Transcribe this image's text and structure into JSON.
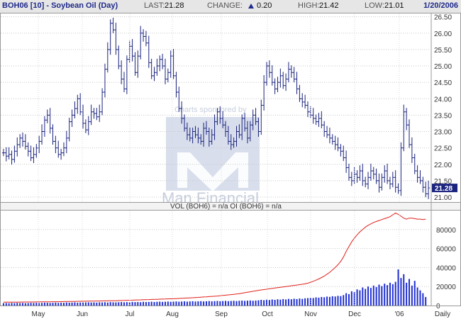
{
  "header": {
    "title": "BOH06 [10] - Soybean Oil (Day)",
    "last_label": "LAST:",
    "last_value": "21.28",
    "change_label": "CHANGE:",
    "change_value": "0.20",
    "high_label": "HIGH:",
    "high_value": "21.42",
    "low_label": "LOW:",
    "low_value": "21.01",
    "date": "1/20/2006"
  },
  "watermark": {
    "sponsor_text": "Charts sponsored by",
    "brand": "Man Financial"
  },
  "colors": {
    "price_bars": "#1a237e",
    "volume_bars": "#1f2fd0",
    "open_interest": "#e0201a",
    "last_tag_bg": "#1a237e"
  },
  "chart_data": [
    {
      "type": "ohlc",
      "title": "BOH06 [10] - Soybean Oil (Day)",
      "period": "Daily",
      "x_labels": [
        "May",
        "Jun",
        "Jul",
        "Aug",
        "Sep",
        "Oct",
        "Nov",
        "Dec",
        "'06",
        "Daily"
      ],
      "y_ticks": [
        "21.00",
        "21.50",
        "22.00",
        "22.50",
        "23.00",
        "23.50",
        "24.00",
        "24.50",
        "25.00",
        "25.50",
        "26.00",
        "26.50"
      ],
      "ylim": [
        20.85,
        26.6
      ],
      "last_tag": "21.28",
      "grid": true,
      "series_close": [
        22.35,
        22.25,
        22.3,
        22.15,
        22.4,
        22.6,
        22.8,
        22.7,
        22.55,
        22.4,
        22.2,
        22.3,
        22.5,
        22.7,
        23.0,
        23.35,
        23.5,
        23.1,
        22.7,
        22.5,
        22.3,
        22.35,
        22.5,
        22.8,
        23.3,
        23.5,
        23.7,
        24.0,
        23.6,
        23.25,
        23.05,
        23.3,
        23.6,
        23.55,
        23.45,
        23.6,
        24.2,
        24.9,
        25.5,
        26.3,
        26.1,
        25.5,
        25.0,
        24.6,
        24.3,
        25.2,
        25.6,
        25.3,
        24.8,
        25.3,
        26.0,
        25.9,
        25.7,
        25.1,
        24.7,
        24.8,
        25.0,
        25.2,
        25.0,
        24.6,
        24.8,
        25.3,
        24.7,
        24.2,
        23.7,
        23.4,
        23.1,
        22.9,
        22.8,
        23.0,
        22.9,
        22.8,
        22.7,
        23.1,
        23.0,
        22.7,
        22.9,
        23.3,
        23.6,
        23.4,
        23.2,
        23.0,
        22.7,
        22.6,
        22.7,
        23.0,
        22.9,
        23.4,
        23.1,
        22.8,
        23.2,
        23.5,
        23.3,
        23.0,
        23.8,
        24.5,
        25.0,
        24.8,
        24.5,
        24.3,
        24.5,
        24.7,
        24.4,
        24.6,
        24.9,
        24.8,
        24.6,
        24.3,
        24.0,
        23.9,
        23.8,
        23.6,
        23.5,
        23.4,
        23.3,
        23.4,
        23.2,
        23.0,
        22.9,
        22.8,
        22.7,
        22.6,
        22.5,
        22.4,
        22.2,
        21.9,
        21.6,
        21.5,
        21.7,
        21.6,
        21.8,
        21.5,
        21.4,
        21.6,
        21.8,
        21.7,
        21.5,
        21.3,
        21.6,
        21.8,
        21.5,
        21.4,
        21.6,
        21.3,
        21.2,
        22.5,
        23.6,
        23.2,
        22.6,
        22.2,
        21.8,
        21.6,
        21.5,
        21.3,
        21.1,
        21.28
      ]
    },
    {
      "type": "bar+line",
      "title": "VOL (BOH6) = n/a OI (BOH6) = n/a",
      "y_ticks": [
        "0",
        "20000",
        "40000",
        "60000",
        "80000"
      ],
      "ylim": [
        0,
        100000
      ],
      "series": [
        {
          "name": "VOL",
          "type": "bar",
          "values": [
            2500,
            2600,
            2400,
            2700,
            2500,
            2800,
            2600,
            2700,
            2500,
            2600,
            2800,
            2700,
            2900,
            2600,
            2800,
            3000,
            2900,
            2700,
            2900,
            3100,
            2800,
            3000,
            2900,
            3200,
            3000,
            3100,
            3300,
            3000,
            3200,
            3100,
            3300,
            3400,
            3200,
            3300,
            3100,
            3400,
            3300,
            3500,
            3200,
            3600,
            3400,
            3300,
            3500,
            3700,
            3400,
            3600,
            3500,
            3800,
            3600,
            3700,
            3500,
            3900,
            3700,
            3800,
            4000,
            3700,
            3900,
            4100,
            3800,
            4000,
            4200,
            3900,
            4100,
            4300,
            4000,
            4200,
            4400,
            4100,
            4300,
            4500,
            4200,
            4400,
            4600,
            4300,
            4500,
            4700,
            4400,
            4600,
            4800,
            4500,
            4700,
            4900,
            4600,
            4800,
            5000,
            4700,
            5000,
            5200,
            4900,
            5100,
            5300,
            5000,
            5200,
            5500,
            6000,
            5600,
            6200,
            5800,
            6400,
            6000,
            6600,
            6200,
            6800,
            6400,
            7000,
            6600,
            7200,
            6800,
            7400,
            7000,
            7600,
            7800,
            8200,
            7900,
            8600,
            8300,
            9000,
            8700,
            9400,
            9100,
            9800,
            9500,
            10200,
            9900,
            11000,
            13000,
            12000,
            15000,
            14000,
            17000,
            16000,
            19000,
            17500,
            20000,
            18500,
            21000,
            19500,
            22000,
            20500,
            23000,
            21500,
            24000,
            22500,
            25000,
            38000,
            29000,
            33000,
            24000,
            28000,
            21000,
            26000,
            19000,
            16000,
            13000,
            9000
          ]
        },
        {
          "name": "OI",
          "type": "line",
          "values": [
            3500,
            3500,
            3550,
            3550,
            3600,
            3600,
            3650,
            3650,
            3700,
            3700,
            3750,
            3750,
            3800,
            3800,
            3850,
            3900,
            3900,
            3950,
            4000,
            4000,
            4050,
            4100,
            4150,
            4200,
            4250,
            4300,
            4350,
            4400,
            4450,
            4500,
            4550,
            4600,
            4650,
            4700,
            4750,
            4800,
            4850,
            4900,
            4950,
            5000,
            5050,
            5100,
            5200,
            5300,
            5400,
            5500,
            5600,
            5700,
            5800,
            5900,
            6000,
            6100,
            6200,
            6300,
            6400,
            6500,
            6600,
            6700,
            6800,
            6900,
            7000,
            7100,
            7200,
            7300,
            7450,
            7600,
            7750,
            7900,
            8050,
            8200,
            8400,
            8600,
            8800,
            9000,
            9200,
            9400,
            9600,
            9800,
            10000,
            10300,
            10600,
            10900,
            11200,
            11500,
            11800,
            12100,
            12500,
            13000,
            13500,
            14000,
            14500,
            15000,
            15500,
            16000,
            16400,
            16800,
            17200,
            17600,
            18000,
            18400,
            18800,
            19200,
            19600,
            20000,
            20400,
            20800,
            21200,
            21600,
            22000,
            22400,
            22800,
            23500,
            24500,
            25500,
            26700,
            28000,
            29500,
            31000,
            33000,
            35000,
            37500,
            40000,
            43000,
            46500,
            51000,
            57000,
            62000,
            67000,
            71000,
            74500,
            77500,
            80000,
            82500,
            84500,
            86000,
            87500,
            88500,
            89500,
            90500,
            91500,
            92500,
            93500,
            95500,
            97500,
            96000,
            94000,
            92000,
            91000,
            92000,
            92000,
            91500,
            91000,
            91000,
            90500,
            91000
          ]
        }
      ]
    }
  ]
}
